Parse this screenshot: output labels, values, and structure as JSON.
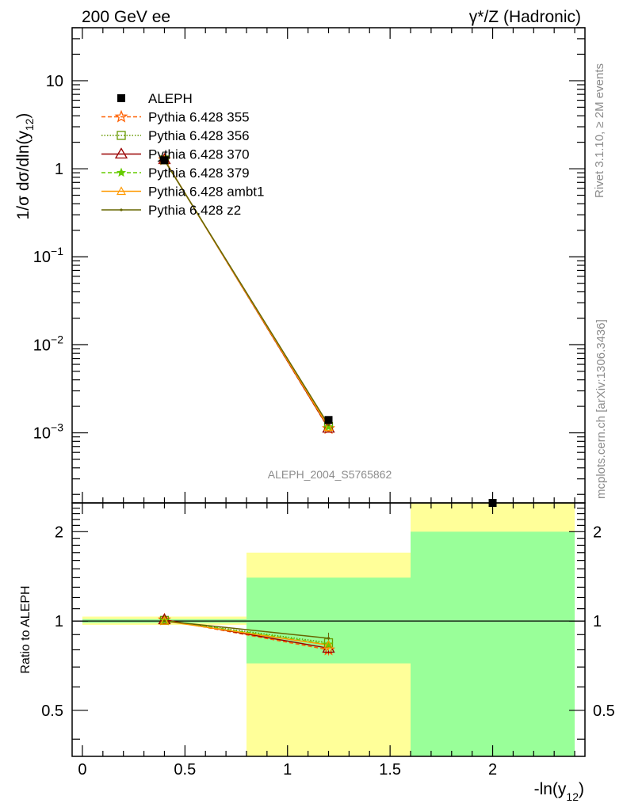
{
  "header": {
    "left": "200 GeV ee",
    "right": "γ*/Z (Hadronic)"
  },
  "side": {
    "rivet": "Rivet 3.1.10, ≥ 2M events",
    "mcplots": "mcplots.cern.ch [arXiv:1306.3436]"
  },
  "watermark": "ALEPH_2004_S5765862",
  "colors": {
    "data": "#000000",
    "band_inner": "#99ff99",
    "band_outer": "#ffff99",
    "p355": "#ff6000",
    "p356": "#669900",
    "p370": "#990000",
    "p379": "#66cc00",
    "ambt1": "#ff9900",
    "z2": "#666600"
  },
  "chart_data": [
    {
      "type": "line",
      "panel": "main",
      "ylabel_prefix": "1/σ  dσ/dln(y",
      "ylabel_sub": "12",
      "ylabel_suffix": ")",
      "yscale": "log",
      "ylim": [
        0.00016,
        40
      ],
      "xlim": [
        -0.05,
        2.45
      ],
      "ytick_labels": [
        {
          "value": 10,
          "mant": "10",
          "exp": ""
        },
        {
          "value": 1,
          "mant": "1",
          "exp": ""
        },
        {
          "value": 0.1,
          "mant": "10",
          "exp": "−1"
        },
        {
          "value": 0.01,
          "mant": "10",
          "exp": "−2"
        },
        {
          "value": 0.001,
          "mant": "10",
          "exp": "−3"
        }
      ],
      "legend_position": "top-left",
      "data": {
        "name": "ALEPH",
        "x": [
          0.4,
          1.2,
          2.0
        ],
        "y": [
          1.25,
          0.0014,
          0.00014
        ]
      },
      "series": [
        {
          "name": "Pythia 6.428 355",
          "key": "p355",
          "marker": "star",
          "dash": "5,3",
          "x": [
            0.4,
            1.2
          ],
          "y": [
            1.27,
            0.00112
          ]
        },
        {
          "name": "Pythia 6.428 356",
          "key": "p356",
          "marker": "square",
          "dash": "1.5,2",
          "x": [
            0.4,
            1.2
          ],
          "y": [
            1.26,
            0.00118
          ]
        },
        {
          "name": "Pythia 6.428 370",
          "key": "p370",
          "marker": "triangle",
          "dash": "",
          "x": [
            0.4,
            1.2
          ],
          "y": [
            1.27,
            0.00113
          ]
        },
        {
          "name": "Pythia 6.428 379",
          "key": "p379",
          "marker": "smallstar",
          "dash": "5,3",
          "x": [
            0.4,
            1.2
          ],
          "y": [
            1.26,
            0.00117
          ]
        },
        {
          "name": "Pythia 6.428 ambt1",
          "key": "ambt1",
          "marker": "smalltriangle",
          "dash": "",
          "x": [
            0.4,
            1.2
          ],
          "y": [
            1.26,
            0.00116
          ]
        },
        {
          "name": "Pythia 6.428 z2",
          "key": "z2",
          "marker": "dot",
          "dash": "",
          "x": [
            0.4,
            1.2
          ],
          "y": [
            1.25,
            0.00123
          ]
        }
      ]
    },
    {
      "type": "line",
      "panel": "ratio",
      "ylabel": "Ratio to ALEPH",
      "xlabel_prefix": "-ln(y",
      "xlabel_sub": "12",
      "xlabel_suffix": ")",
      "yscale": "log",
      "ylim": [
        0.35,
        2.5
      ],
      "xlim": [
        -0.05,
        2.45
      ],
      "xticks": [
        0,
        0.5,
        1,
        1.5,
        2
      ],
      "xtick_labels": [
        "0",
        "0.5",
        "1",
        "1.5",
        "2"
      ],
      "yticks": [
        0.5,
        1,
        2
      ],
      "ytick_labels": [
        "0.5",
        "1",
        "2"
      ],
      "reference": 1,
      "bands": [
        {
          "x0": 0,
          "x1": 0.8,
          "inner": [
            0.985,
            1.015
          ],
          "outer": [
            0.97,
            1.035
          ]
        },
        {
          "x0": 0.8,
          "x1": 1.6,
          "inner": [
            0.72,
            1.4
          ],
          "outer": [
            0.35,
            1.7
          ]
        },
        {
          "x0": 1.6,
          "x1": 2.4,
          "inner": [
            0.35,
            2.0
          ],
          "outer": [
            0.35,
            2.5
          ]
        }
      ],
      "series": [
        {
          "key": "p355",
          "x": [
            0.4,
            1.2
          ],
          "y": [
            1.01,
            0.8
          ]
        },
        {
          "key": "p356",
          "x": [
            0.4,
            1.2
          ],
          "y": [
            1.005,
            0.845
          ]
        },
        {
          "key": "p370",
          "x": [
            0.4,
            1.2
          ],
          "y": [
            1.01,
            0.81
          ]
        },
        {
          "key": "p379",
          "x": [
            0.4,
            1.2
          ],
          "y": [
            1.005,
            0.835
          ]
        },
        {
          "key": "ambt1",
          "x": [
            0.4,
            1.2
          ],
          "y": [
            1.0,
            0.83
          ]
        },
        {
          "key": "z2",
          "x": [
            0.4,
            1.2
          ],
          "y": [
            1.0,
            0.875
          ]
        }
      ]
    }
  ]
}
